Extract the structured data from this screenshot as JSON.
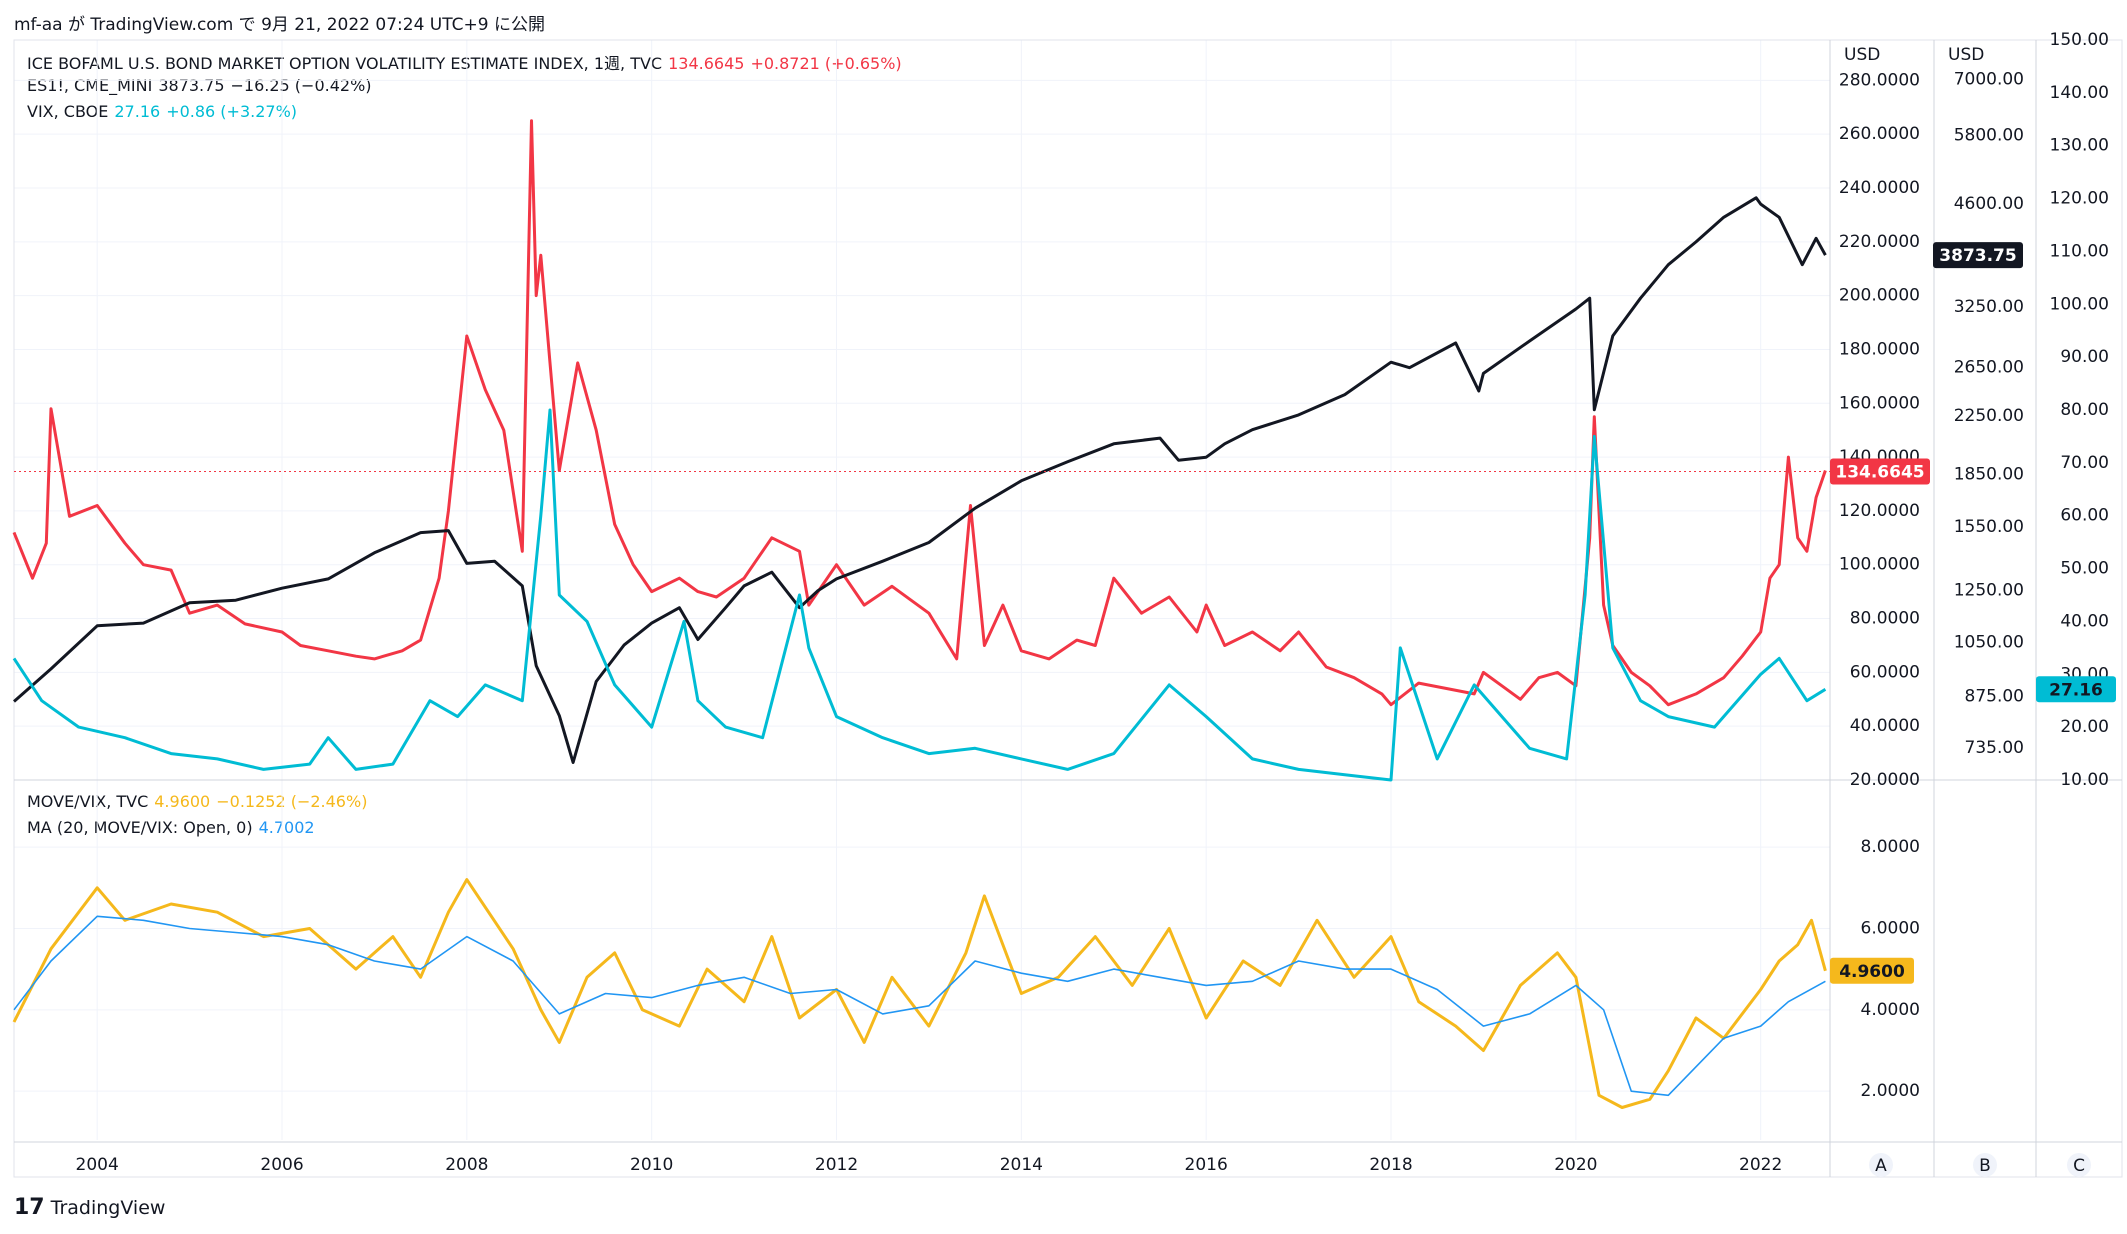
{
  "caption": "mf-aa が TradingView.com で 9月 21, 2022 07:24 UTC+9 に公開",
  "legend_main": [
    {
      "name": "ICE BOFAML U.S. BOND MARKET OPTION VOLATILITY ESTIMATE INDEX, 1週, TVC",
      "value": "134.6645",
      "change": "+0.8721 (+0.65%)",
      "color": "#f23645"
    },
    {
      "name": "ES1!, CME_MINI",
      "value": "3873.75",
      "change": "−16.25 (−0.42%)",
      "color": "#131722"
    },
    {
      "name": "VIX, CBOE",
      "value": "27.16",
      "change": "+0.86 (+3.27%)",
      "color": "#00bcd4"
    }
  ],
  "legend_sub": [
    {
      "name": "MOVE/VIX, TVC",
      "value": "4.9600",
      "change": "−0.1252 (−2.46%)",
      "color": "#f5b81c"
    },
    {
      "name": "MA (20, MOVE/VIX: Open, 0)",
      "value": "4.7002",
      "change": "",
      "color": "#2196f3"
    }
  ],
  "axis_headers": {
    "a": "USD",
    "b": "USD"
  },
  "scale_labels": {
    "a": "A",
    "b": "B",
    "c": "C"
  },
  "badges": {
    "move": "134.6645",
    "es": "3873.75",
    "vix": "27.16",
    "ratio": "4.9600"
  },
  "footer": "TradingView",
  "chart_data": {
    "type": "line",
    "x_ticks": [
      "2004",
      "2006",
      "2008",
      "2010",
      "2012",
      "2014",
      "2016",
      "2018",
      "2020",
      "2022"
    ],
    "x_range": [
      2003.1,
      2022.75
    ],
    "axisA": {
      "ticks": [
        "280.0000",
        "260.0000",
        "240.0000",
        "220.0000",
        "200.0000",
        "180.0000",
        "160.0000",
        "140.0000",
        "120.0000",
        "100.0000",
        "80.0000",
        "60.0000",
        "40.0000",
        "20.0000"
      ],
      "range": [
        20,
        295
      ]
    },
    "axisB": {
      "ticks": [
        "7000.00",
        "5800.00",
        "4600.00",
        "3250.00",
        "2650.00",
        "2250.00",
        "1850.00",
        "1550.00",
        "1250.00",
        "1050.00",
        "875.00",
        "735.00"
      ],
      "scale": "log",
      "range": [
        660,
        8000
      ]
    },
    "axisC": {
      "ticks": [
        "150.00",
        "140.00",
        "130.00",
        "120.00",
        "110.00",
        "100.00",
        "90.00",
        "80.00",
        "70.00",
        "60.00",
        "50.00",
        "40.00",
        "30.00",
        "20.00",
        "10.00"
      ],
      "range": [
        10,
        150
      ]
    },
    "axisSub": {
      "ticks": [
        "8.0000",
        "6.0000",
        "4.0000",
        "2.0000"
      ],
      "range": [
        0.8,
        9.6
      ]
    },
    "series": [
      {
        "name": "ICE BOFAML U.S. BOND MARKET OPTION VOLATILITY ESTIMATE INDEX",
        "axis": "A",
        "color": "#f23645",
        "x": [
          2003.1,
          2003.3,
          2003.45,
          2003.5,
          2003.7,
          2004.0,
          2004.3,
          2004.5,
          2004.8,
          2005.0,
          2005.3,
          2005.6,
          2006.0,
          2006.2,
          2006.5,
          2006.8,
          2007.0,
          2007.3,
          2007.5,
          2007.7,
          2007.8,
          2008.0,
          2008.2,
          2008.4,
          2008.6,
          2008.7,
          2008.75,
          2008.8,
          2008.9,
          2009.0,
          2009.2,
          2009.4,
          2009.6,
          2009.8,
          2010.0,
          2010.3,
          2010.5,
          2010.7,
          2011.0,
          2011.3,
          2011.6,
          2011.7,
          2012.0,
          2012.3,
          2012.6,
          2013.0,
          2013.3,
          2013.45,
          2013.6,
          2013.8,
          2014.0,
          2014.3,
          2014.6,
          2014.8,
          2015.0,
          2015.3,
          2015.6,
          2015.9,
          2016.0,
          2016.2,
          2016.5,
          2016.8,
          2017.0,
          2017.3,
          2017.6,
          2017.9,
          2018.0,
          2018.3,
          2018.6,
          2018.9,
          2019.0,
          2019.2,
          2019.4,
          2019.6,
          2019.8,
          2020.0,
          2020.15,
          2020.2,
          2020.3,
          2020.4,
          2020.6,
          2020.8,
          2021.0,
          2021.3,
          2021.6,
          2021.8,
          2022.0,
          2022.1,
          2022.2,
          2022.3,
          2022.4,
          2022.5,
          2022.6,
          2022.7
        ],
        "y": [
          112,
          95,
          108,
          158,
          118,
          122,
          108,
          100,
          98,
          82,
          85,
          78,
          75,
          70,
          68,
          66,
          65,
          68,
          72,
          95,
          120,
          185,
          165,
          150,
          105,
          265,
          200,
          215,
          175,
          135,
          175,
          150,
          115,
          100,
          90,
          95,
          90,
          88,
          95,
          110,
          105,
          85,
          100,
          85,
          92,
          82,
          65,
          122,
          70,
          85,
          68,
          65,
          72,
          70,
          95,
          82,
          88,
          75,
          85,
          70,
          75,
          68,
          75,
          62,
          58,
          52,
          48,
          56,
          54,
          52,
          60,
          55,
          50,
          58,
          60,
          55,
          110,
          155,
          85,
          70,
          60,
          55,
          48,
          52,
          58,
          66,
          75,
          95,
          100,
          140,
          110,
          105,
          125,
          135
        ]
      },
      {
        "name": "ES1!, CME_MINI",
        "axis": "B",
        "color": "#131722",
        "x": [
          2003.1,
          2003.5,
          2004.0,
          2004.5,
          2005.0,
          2005.5,
          2006.0,
          2006.5,
          2007.0,
          2007.5,
          2007.8,
          2008.0,
          2008.3,
          2008.6,
          2008.75,
          2009.0,
          2009.15,
          2009.4,
          2009.7,
          2010.0,
          2010.3,
          2010.5,
          2010.8,
          2011.0,
          2011.3,
          2011.6,
          2011.8,
          2012.0,
          2012.5,
          2013.0,
          2013.5,
          2014.0,
          2014.5,
          2015.0,
          2015.5,
          2015.7,
          2016.0,
          2016.2,
          2016.5,
          2017.0,
          2017.5,
          2018.0,
          2018.2,
          2018.7,
          2018.95,
          2019.0,
          2019.5,
          2020.0,
          2020.15,
          2020.2,
          2020.4,
          2020.7,
          2021.0,
          2021.3,
          2021.6,
          2021.95,
          2022.0,
          2022.2,
          2022.45,
          2022.6,
          2022.7
        ],
        "y": [
          860,
          960,
          1110,
          1120,
          1200,
          1210,
          1260,
          1300,
          1420,
          1520,
          1530,
          1370,
          1380,
          1270,
          970,
          820,
          700,
          920,
          1040,
          1120,
          1180,
          1060,
          1180,
          1270,
          1330,
          1180,
          1250,
          1300,
          1380,
          1470,
          1650,
          1810,
          1930,
          2050,
          2090,
          1940,
          1960,
          2050,
          2150,
          2260,
          2420,
          2700,
          2650,
          2880,
          2450,
          2600,
          2900,
          3230,
          3350,
          2300,
          2950,
          3350,
          3750,
          4050,
          4400,
          4700,
          4600,
          4400,
          3750,
          4100,
          3873.75
        ]
      },
      {
        "name": "VIX, CBOE",
        "axis": "C",
        "color": "#00bcd4",
        "x": [
          2003.1,
          2003.4,
          2003.8,
          2004.3,
          2004.8,
          2005.3,
          2005.8,
          2006.3,
          2006.5,
          2006.8,
          2007.2,
          2007.6,
          2007.9,
          2008.2,
          2008.6,
          2008.8,
          2008.9,
          2009.0,
          2009.3,
          2009.6,
          2010.0,
          2010.35,
          2010.5,
          2010.8,
          2011.2,
          2011.6,
          2011.7,
          2012.0,
          2012.5,
          2013.0,
          2013.5,
          2014.0,
          2014.5,
          2015.0,
          2015.6,
          2016.0,
          2016.5,
          2017.0,
          2017.5,
          2018.0,
          2018.1,
          2018.5,
          2018.9,
          2019.5,
          2019.9,
          2020.1,
          2020.2,
          2020.4,
          2020.7,
          2021.0,
          2021.5,
          2022.0,
          2022.2,
          2022.5,
          2022.7
        ],
        "y": [
          33,
          25,
          20,
          18,
          15,
          14,
          12,
          13,
          18,
          12,
          13,
          25,
          22,
          28,
          25,
          60,
          80,
          45,
          40,
          28,
          20,
          40,
          25,
          20,
          18,
          45,
          35,
          22,
          18,
          15,
          16,
          14,
          12,
          15,
          28,
          22,
          14,
          12,
          11,
          10,
          35,
          14,
          28,
          16,
          14,
          45,
          75,
          35,
          25,
          22,
          20,
          30,
          33,
          25,
          27.16
        ]
      },
      {
        "name": "MOVE/VIX, TVC",
        "axis": "Sub",
        "color": "#f5b81c",
        "x": [
          2003.1,
          2003.5,
          2004.0,
          2004.3,
          2004.8,
          2005.3,
          2005.8,
          2006.3,
          2006.8,
          2007.2,
          2007.5,
          2007.8,
          2008.0,
          2008.5,
          2008.8,
          2009.0,
          2009.3,
          2009.6,
          2009.9,
          2010.3,
          2010.6,
          2011.0,
          2011.3,
          2011.6,
          2012.0,
          2012.3,
          2012.6,
          2013.0,
          2013.4,
          2013.6,
          2014.0,
          2014.4,
          2014.8,
          2015.2,
          2015.6,
          2016.0,
          2016.4,
          2016.8,
          2017.2,
          2017.6,
          2018.0,
          2018.3,
          2018.7,
          2019.0,
          2019.4,
          2019.8,
          2020.0,
          2020.25,
          2020.5,
          2020.8,
          2021.0,
          2021.3,
          2021.6,
          2022.0,
          2022.2,
          2022.4,
          2022.55,
          2022.7
        ],
        "y": [
          3.7,
          5.5,
          7.0,
          6.2,
          6.6,
          6.4,
          5.8,
          6.0,
          5.0,
          5.8,
          4.8,
          6.4,
          7.2,
          5.5,
          4.0,
          3.2,
          4.8,
          5.4,
          4.0,
          3.6,
          5.0,
          4.2,
          5.8,
          3.8,
          4.5,
          3.2,
          4.8,
          3.6,
          5.4,
          6.8,
          4.4,
          4.8,
          5.8,
          4.6,
          6.0,
          3.8,
          5.2,
          4.6,
          6.2,
          4.8,
          5.8,
          4.2,
          3.6,
          3.0,
          4.6,
          5.4,
          4.8,
          1.9,
          1.6,
          1.8,
          2.5,
          3.8,
          3.3,
          4.5,
          5.2,
          5.6,
          6.2,
          4.96
        ]
      },
      {
        "name": "MA (20, MOVE/VIX: Open, 0)",
        "axis": "Sub",
        "color": "#2196f3",
        "x": [
          2003.1,
          2003.5,
          2004.0,
          2004.5,
          2005.0,
          2005.5,
          2006.0,
          2006.5,
          2007.0,
          2007.5,
          2008.0,
          2008.5,
          2009.0,
          2009.5,
          2010.0,
          2010.5,
          2011.0,
          2011.5,
          2012.0,
          2012.5,
          2013.0,
          2013.5,
          2014.0,
          2014.5,
          2015.0,
          2015.5,
          2016.0,
          2016.5,
          2017.0,
          2017.5,
          2018.0,
          2018.5,
          2019.0,
          2019.5,
          2020.0,
          2020.3,
          2020.6,
          2021.0,
          2021.3,
          2021.6,
          2022.0,
          2022.3,
          2022.7
        ],
        "y": [
          4.0,
          5.2,
          6.3,
          6.2,
          6.0,
          5.9,
          5.8,
          5.6,
          5.2,
          5.0,
          5.8,
          5.2,
          3.9,
          4.4,
          4.3,
          4.6,
          4.8,
          4.4,
          4.5,
          3.9,
          4.1,
          5.2,
          4.9,
          4.7,
          5.0,
          4.8,
          4.6,
          4.7,
          5.2,
          5.0,
          5.0,
          4.5,
          3.6,
          3.9,
          4.6,
          4.0,
          2.0,
          1.9,
          2.6,
          3.3,
          3.6,
          4.2,
          4.7
        ]
      }
    ],
    "current_value_lines": [
      {
        "series": "ICE BOFAML U.S. BOND MARKET OPTION VOLATILITY ESTIMATE INDEX",
        "value": 134.6645,
        "style": "dotted"
      }
    ],
    "grid": true,
    "legend_position": "top-left"
  }
}
